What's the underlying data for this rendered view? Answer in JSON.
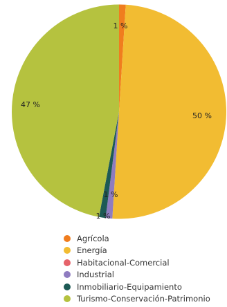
{
  "chart_data": {
    "type": "pie",
    "title": "",
    "unit": "%",
    "slices": [
      {
        "label": "Agrícola",
        "value": 1,
        "color": "#f07d1e",
        "pct_label": "1 %"
      },
      {
        "label": "Energía",
        "value": 50,
        "color": "#f2bc32",
        "pct_label": "50 %"
      },
      {
        "label": "Habitacional-Comercial",
        "value": 0,
        "color": "#e6636a",
        "pct_label": ""
      },
      {
        "label": "Industrial",
        "value": 1,
        "color": "#8f7cc0",
        "pct_label": "1 %"
      },
      {
        "label": "Inmobiliario-Equipamiento",
        "value": 1,
        "color": "#1d5a55",
        "pct_label": "1 %"
      },
      {
        "label": "Turismo-Conservación-Patrimonio",
        "value": 47,
        "color": "#b5c23f",
        "pct_label": "47 %"
      }
    ],
    "legend_position": "bottom"
  }
}
